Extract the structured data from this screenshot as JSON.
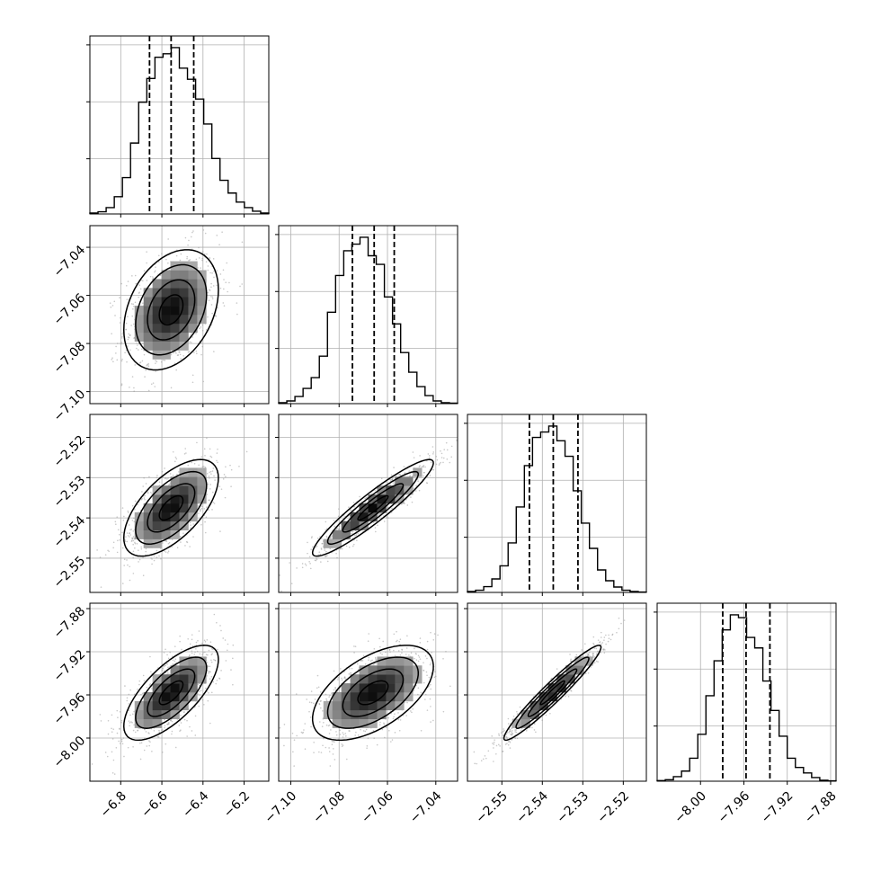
{
  "chart_data": {
    "type": "corner",
    "title": "",
    "grid": true,
    "parameters": [
      {
        "name": "",
        "range": [
          -6.95,
          -6.08
        ],
        "ticks": [
          -6.8,
          -6.6,
          -6.4,
          -6.2
        ],
        "tick_labels": [
          "−6.8",
          "−6.6",
          "−6.4",
          "−6.2"
        ],
        "quantiles": [
          -6.66,
          -6.555,
          -6.445
        ],
        "hist_counts": [
          0.5,
          1.2,
          3.5,
          9.5,
          20.0,
          39.0,
          61.5,
          74.5,
          86.2,
          88.1,
          91.5,
          80.2,
          74.1,
          63.2,
          49.5,
          30.5,
          18.5,
          11.5,
          6.5,
          3.5,
          1.5,
          0.5
        ]
      },
      {
        "name": "",
        "range": [
          -7.105,
          -7.031
        ],
        "ticks": [
          -7.1,
          -7.08,
          -7.06,
          -7.04
        ],
        "tick_labels": [
          "−7.10",
          "−7.08",
          "−7.06",
          "−7.04"
        ],
        "quantiles": [
          -7.0745,
          -7.0655,
          -7.0572
        ],
        "hist_counts": [
          0.5,
          1.5,
          4.0,
          8.5,
          14.5,
          26.5,
          51.0,
          71.5,
          85.3,
          89.0,
          92.8,
          82.5,
          77.7,
          59.5,
          44.5,
          28.5,
          17.5,
          9.5,
          4.5,
          1.5,
          0.5,
          0.3
        ]
      },
      {
        "name": "",
        "range": [
          -2.5585,
          -2.5143
        ],
        "ticks": [
          -2.55,
          -2.54,
          -2.53,
          -2.52
        ],
        "tick_labels": [
          "−2.55",
          "−2.54",
          "−2.53",
          "−2.52"
        ],
        "quantiles": [
          -2.5432,
          -2.5373,
          -2.5312
        ],
        "hist_counts": [
          0.5,
          1.2,
          3.2,
          7.5,
          14.8,
          27.5,
          47.5,
          70.5,
          86.2,
          89.2,
          92.5,
          84.3,
          75.7,
          56.5,
          38.5,
          24.5,
          12.5,
          6.5,
          3.0,
          1.2,
          0.5,
          0.2
        ]
      },
      {
        "name": "",
        "range": [
          -8.04,
          -7.875
        ],
        "ticks": [
          -8.0,
          -7.96,
          -7.92,
          -7.88
        ],
        "tick_labels": [
          "−8.00",
          "−7.96",
          "−7.92",
          "−7.88"
        ],
        "quantiles": [
          -7.9795,
          -7.958,
          -7.936
        ],
        "hist_counts": [
          0.3,
          0.8,
          2.5,
          5.5,
          12.5,
          25.5,
          46.5,
          65.5,
          82.3,
          90.5,
          89.0,
          78.2,
          72.5,
          54.5,
          38.5,
          24.5,
          12.5,
          7.5,
          4.5,
          2.0,
          0.5,
          0.2
        ]
      }
    ],
    "pairs": [
      {
        "x": 0,
        "y": 1,
        "mean": [
          -6.555,
          -7.066
        ],
        "std": [
          0.115,
          0.0125
        ],
        "corr": 0.33,
        "n_points": 900
      },
      {
        "x": 0,
        "y": 2,
        "mean": [
          -6.555,
          -2.5375
        ],
        "std": [
          0.115,
          0.006
        ],
        "corr": 0.62,
        "n_points": 900
      },
      {
        "x": 1,
        "y": 2,
        "mean": [
          -7.066,
          -2.5375
        ],
        "std": [
          0.0125,
          0.006
        ],
        "corr": 0.93,
        "n_points": 900
      },
      {
        "x": 0,
        "y": 3,
        "mean": [
          -6.555,
          -7.958
        ],
        "std": [
          0.115,
          0.022
        ],
        "corr": 0.7,
        "n_points": 900
      },
      {
        "x": 1,
        "y": 3,
        "mean": [
          -7.066,
          -7.958
        ],
        "std": [
          0.0125,
          0.022
        ],
        "corr": 0.55,
        "n_points": 900
      },
      {
        "x": 2,
        "y": 3,
        "mean": [
          -2.5375,
          -7.958
        ],
        "std": [
          0.006,
          0.022
        ],
        "corr": 0.96,
        "n_points": 900
      }
    ],
    "contour_levels_sigma": [
      0.5,
      1.0,
      1.5,
      2.0
    ]
  }
}
